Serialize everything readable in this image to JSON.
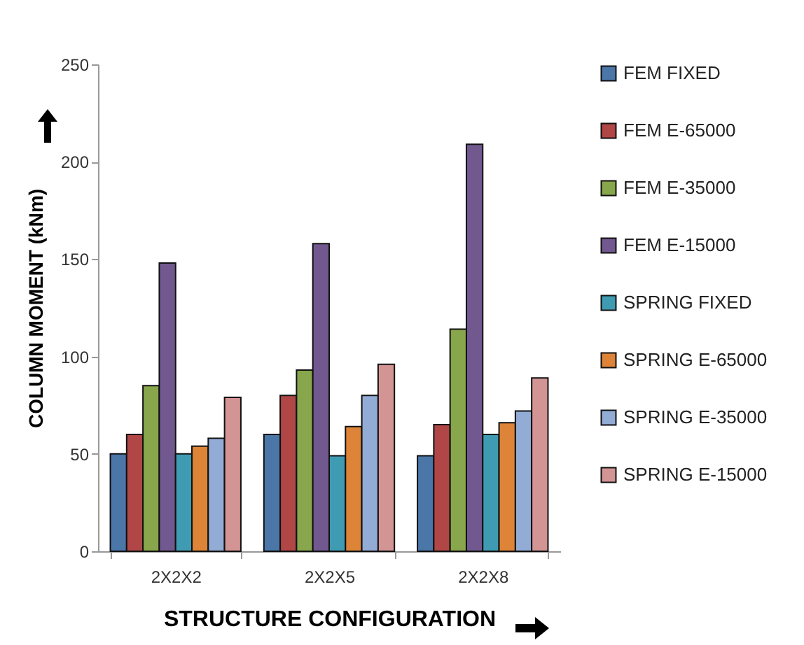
{
  "chart_data": {
    "type": "bar",
    "xlabel": "STRUCTURE CONFIGURATION",
    "ylabel": "COLUMN MOMENT (kNm)",
    "categories": [
      "2X2X2",
      "2X2X5",
      "2X2X8"
    ],
    "series": [
      {
        "name": "FEM FIXED",
        "color": "#4a76a8",
        "values": [
          50,
          60,
          49
        ]
      },
      {
        "name": "FEM E-65000",
        "color": "#b04646",
        "values": [
          60,
          80,
          65
        ]
      },
      {
        "name": "FEM E-35000",
        "color": "#88a64b",
        "values": [
          85,
          93,
          114
        ]
      },
      {
        "name": "FEM E-15000",
        "color": "#71598f",
        "values": [
          148,
          158,
          209
        ]
      },
      {
        "name": "SPRING FIXED",
        "color": "#3f9bb2",
        "values": [
          50,
          49,
          60
        ]
      },
      {
        "name": "SPRING E-65000",
        "color": "#dd8438",
        "values": [
          54,
          64,
          66
        ]
      },
      {
        "name": "SPRING E-35000",
        "color": "#93acd6",
        "values": [
          58,
          80,
          72
        ]
      },
      {
        "name": "SPRING E-15000",
        "color": "#d39494",
        "values": [
          79,
          96,
          89
        ]
      }
    ],
    "ylim": [
      0,
      250
    ],
    "yticks": [
      0,
      50,
      100,
      150,
      200,
      250
    ],
    "grid": false,
    "legend": "right"
  }
}
